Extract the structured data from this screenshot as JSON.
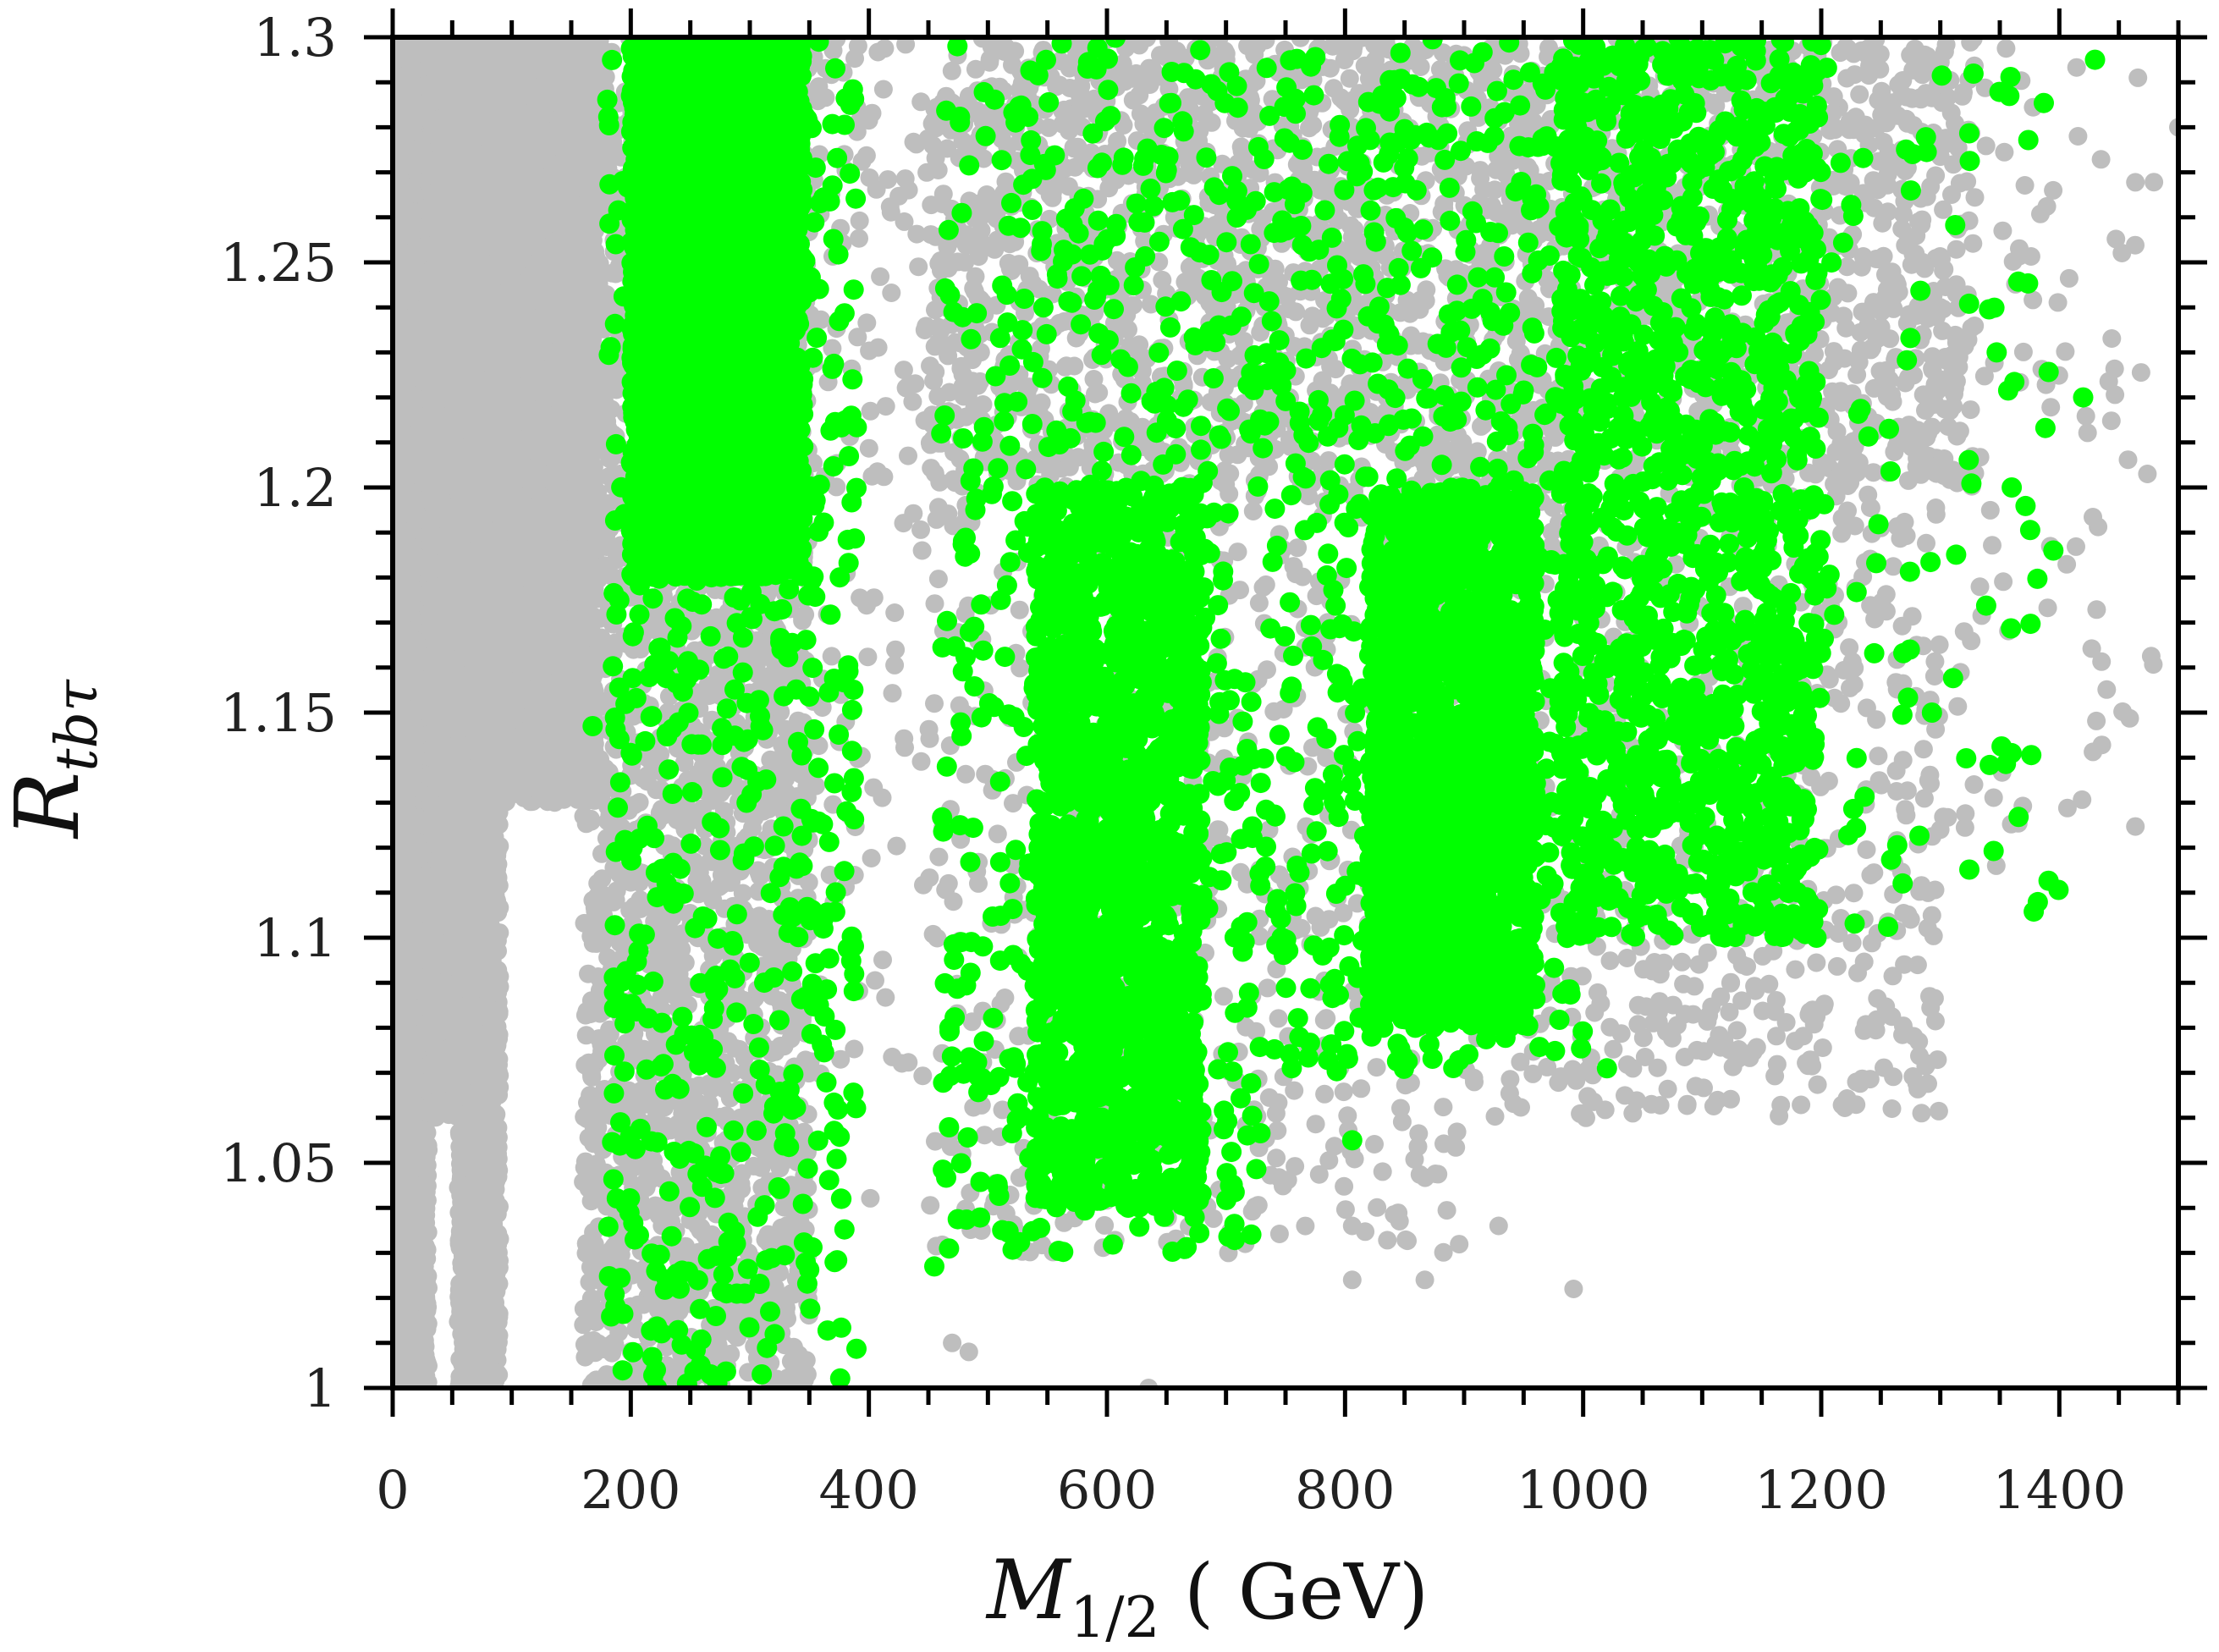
{
  "chart_data": {
    "type": "scatter",
    "xlabel": "M_{1/2} ( GeV)",
    "ylabel": "R_{tbτ}",
    "xlim": [
      0,
      1500
    ],
    "ylim": [
      1.0,
      1.3
    ],
    "x_ticks": [
      0,
      200,
      400,
      600,
      800,
      1000,
      1200,
      1400
    ],
    "x_tick_labels": [
      "0",
      "200",
      "400",
      "600",
      "800",
      "1000",
      "1200",
      "1400"
    ],
    "y_ticks": [
      1.0,
      1.05,
      1.1,
      1.15,
      1.2,
      1.25,
      1.3
    ],
    "y_tick_labels": [
      "1",
      "1.05",
      "1.1",
      "1.15",
      "1.2",
      "1.25",
      "1.3"
    ],
    "grid": false,
    "legend": "none",
    "colors": {
      "gray": "#bebebe",
      "green": "#00ff00",
      "frame": "#000000"
    },
    "series": [
      {
        "color": "#bebebe",
        "description_points": "dense gray background points",
        "clusters": [
          {
            "x_range": [
              0,
              30
            ],
            "y_range": [
              1.0,
              1.3
            ],
            "density": "filled"
          },
          {
            "x_range": [
              30,
              60
            ],
            "y_range": [
              1.06,
              1.3
            ],
            "density": "filled"
          },
          {
            "x_range": [
              55,
              90
            ],
            "y_range": [
              1.0,
              1.3
            ],
            "density": "filled"
          },
          {
            "x_range": [
              90,
              170
            ],
            "y_range": [
              1.13,
              1.3
            ],
            "density": "filled"
          },
          {
            "x_range": [
              160,
              350
            ],
            "y_range": [
              1.0,
              1.3
            ],
            "density": "filled"
          },
          {
            "x_range": [
              340,
              450
            ],
            "y_range": [
              1.02,
              1.3
            ],
            "density": "sparse-bottom"
          },
          {
            "x_range": [
              450,
              1330
            ],
            "y_range": [
              1.2,
              1.3
            ],
            "density": "filled"
          },
          {
            "x_range": [
              450,
              900
            ],
            "y_range": [
              1.03,
              1.2
            ],
            "density": "medium"
          },
          {
            "x_range": [
              900,
              1300
            ],
            "y_range": [
              1.06,
              1.2
            ],
            "density": "medium"
          },
          {
            "x_range": [
              1300,
              1480
            ],
            "y_range": [
              1.12,
              1.3
            ],
            "density": "sparse"
          }
        ],
        "sample_points": [
          [
            635,
            1.0
          ],
          [
            1291,
            1.087
          ],
          [
            1347,
            1.116
          ],
          [
            1320,
            1.168
          ],
          [
            1474,
            1.203
          ],
          [
            1466,
            1.291
          ],
          [
            1500,
            1.28
          ],
          [
            992,
            1.022
          ],
          [
            929,
            1.036
          ],
          [
            867,
            1.024
          ],
          [
            806,
            1.024
          ],
          [
            806,
            1.036
          ],
          [
            702,
            1.03
          ],
          [
            470,
            1.01
          ],
          [
            484,
            1.008
          ]
        ]
      },
      {
        "color": "#00ff00",
        "description_points": "green scatter points (selected subset)",
        "clusters": [
          {
            "x_range": [
              200,
              345
            ],
            "y_range": [
              1.18,
              1.3
            ],
            "density": "filled"
          },
          {
            "x_range": [
              180,
              390
            ],
            "y_range": [
              1.0,
              1.3
            ],
            "density": "medium"
          },
          {
            "x_range": [
              460,
              740
            ],
            "y_range": [
              1.03,
              1.3
            ],
            "density": "medium"
          },
          {
            "x_range": [
              540,
              680
            ],
            "y_range": [
              1.04,
              1.2
            ],
            "density": "dense"
          },
          {
            "x_range": [
              740,
              1000
            ],
            "y_range": [
              1.07,
              1.3
            ],
            "density": "medium"
          },
          {
            "x_range": [
              820,
              960
            ],
            "y_range": [
              1.08,
              1.2
            ],
            "density": "dense"
          },
          {
            "x_range": [
              980,
              1200
            ],
            "y_range": [
              1.1,
              1.3
            ],
            "density": "dense"
          },
          {
            "x_range": [
              1200,
              1400
            ],
            "y_range": [
              1.1,
              1.3
            ],
            "density": "sparse"
          }
        ],
        "sample_points": [
          [
            168,
            1.147
          ],
          [
            222,
            1.0
          ],
          [
            267,
            1.003
          ],
          [
            310,
            1.003
          ],
          [
            455,
            1.027
          ],
          [
            648,
            1.038
          ],
          [
            806,
            1.055
          ],
          [
            1020,
            1.071
          ],
          [
            1196,
            1.1
          ],
          [
            1395,
            1.186
          ],
          [
            1420,
            1.22
          ],
          [
            1430,
            1.295
          ],
          [
            1360,
            1.2
          ],
          [
            1293,
            1.15
          ]
        ]
      }
    ]
  }
}
